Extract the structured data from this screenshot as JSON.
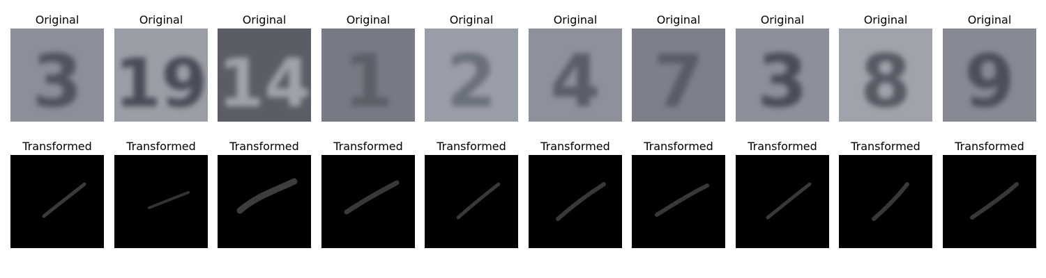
{
  "rows": [
    {
      "row_name": "original",
      "title": "Original",
      "cells": [
        {
          "digit": "3",
          "bg": "#8c8f9a",
          "fg": "#4f5260"
        },
        {
          "digit": "19",
          "bg": "#9b9ea6",
          "fg": "#4a4c56"
        },
        {
          "digit": "14",
          "bg": "#5a5c66",
          "fg": "#a0a3ab"
        },
        {
          "digit": "1",
          "bg": "#777a84",
          "fg": "#5b5e68"
        },
        {
          "digit": "2",
          "bg": "#9a9ea8",
          "fg": "#6b6f7a"
        },
        {
          "digit": "4",
          "bg": "#8e919b",
          "fg": "#5a5d67"
        },
        {
          "digit": "7",
          "bg": "#7d808a",
          "fg": "#595c66"
        },
        {
          "digit": "3",
          "bg": "#8c909b",
          "fg": "#4a4d58"
        },
        {
          "digit": "8",
          "bg": "#a0a3ac",
          "fg": "#575a64"
        },
        {
          "digit": "9",
          "bg": "#878a94",
          "fg": "#4c4f59"
        }
      ]
    },
    {
      "row_name": "transformed",
      "title": "Transformed",
      "cells": [
        {
          "stroke": "#3a3a3a"
        },
        {
          "stroke": "#333333"
        },
        {
          "stroke": "#3d3d3d"
        },
        {
          "stroke": "#383838"
        },
        {
          "stroke": "#383838"
        },
        {
          "stroke": "#383838"
        },
        {
          "stroke": "#383838"
        },
        {
          "stroke": "#383838"
        },
        {
          "stroke": "#383838"
        },
        {
          "stroke": "#383838"
        }
      ]
    }
  ]
}
